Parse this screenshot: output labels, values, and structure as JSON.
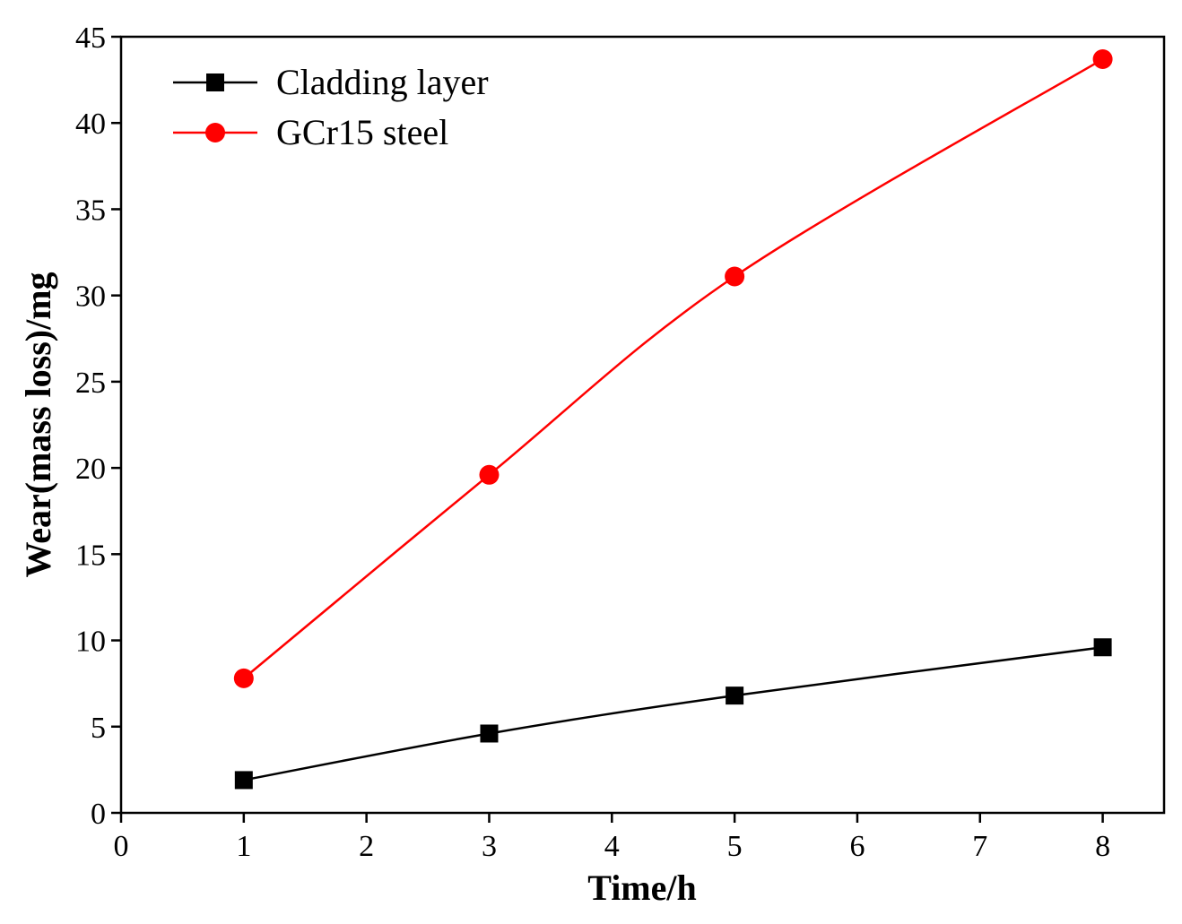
{
  "chart_data": {
    "type": "line",
    "title": "",
    "xlabel": "Time/h",
    "ylabel": "Wear(mass loss)/mg",
    "xlim": [
      0,
      8.5
    ],
    "ylim": [
      0,
      45
    ],
    "xticks": [
      0,
      1,
      2,
      3,
      4,
      5,
      6,
      7,
      8
    ],
    "yticks": [
      0,
      5,
      10,
      15,
      20,
      25,
      30,
      35,
      40,
      45
    ],
    "grid": false,
    "legend_position": "top-left",
    "series": [
      {
        "name": "Cladding layer",
        "color": "#000000",
        "marker": "square",
        "x": [
          1,
          3,
          5,
          8
        ],
        "y": [
          1.9,
          4.6,
          6.8,
          9.6
        ]
      },
      {
        "name": "GCr15 steel",
        "color": "#ff0000",
        "marker": "circle",
        "x": [
          1,
          3,
          5,
          8
        ],
        "y": [
          7.8,
          19.6,
          31.1,
          43.7
        ]
      }
    ]
  }
}
